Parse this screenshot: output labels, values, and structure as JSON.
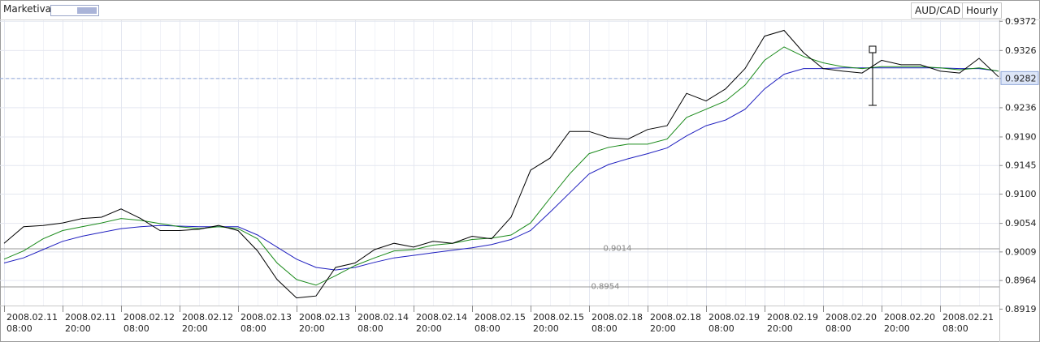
{
  "chart_data": {
    "type": "line",
    "broker": "Marketiva",
    "symbol": "AUD/CAD",
    "timeframe": "Hourly",
    "categories": [
      "2008.02.11 08:00",
      null,
      null,
      "2008.02.11 20:00",
      null,
      null,
      "2008.02.12 08:00",
      null,
      null,
      "2008.02.12 20:00",
      null,
      null,
      "2008.02.13 08:00",
      null,
      null,
      "2008.02.13 20:00",
      null,
      null,
      "2008.02.14 08:00",
      null,
      null,
      "2008.02.14 20:00",
      null,
      null,
      "2008.02.15 08:00",
      null,
      null,
      "2008.02.15 20:00",
      null,
      null,
      "2008.02.18 08:00",
      null,
      null,
      "2008.02.18 20:00",
      null,
      null,
      "2008.02.19 08:00",
      null,
      null,
      "2008.02.19 20:00",
      null,
      null,
      "2008.02.20 08:00",
      null,
      null,
      "2008.02.20 20:00",
      null,
      null,
      "2008.02.21 08:00",
      null,
      null,
      null
    ],
    "series": [
      {
        "color": "#000000",
        "values": [
          0.9022,
          0.9048,
          0.905,
          0.9054,
          0.9061,
          0.9063,
          0.9076,
          0.9061,
          0.9042,
          0.9042,
          0.9044,
          0.905,
          0.9042,
          0.901,
          0.8965,
          0.8936,
          0.8939,
          0.8984,
          0.8991,
          0.9012,
          0.9022,
          0.9016,
          0.9025,
          0.9022,
          0.9033,
          0.9029,
          0.9063,
          0.9137,
          0.9156,
          0.9198,
          0.9198,
          0.9188,
          0.9186,
          0.9201,
          0.9207,
          0.9258,
          0.9246,
          0.9265,
          0.9297,
          0.9348,
          0.9357,
          0.9322,
          0.9297,
          0.9293,
          0.929,
          0.931,
          0.9303,
          0.9303,
          0.9293,
          0.929,
          0.9313,
          0.9284
        ]
      },
      {
        "color": "#1a8a1a",
        "values": [
          0.8997,
          0.901,
          0.9029,
          0.9042,
          0.9048,
          0.9054,
          0.9061,
          0.9058,
          0.9053,
          0.9048,
          0.9045,
          0.9048,
          0.9045,
          0.9029,
          0.8991,
          0.8965,
          0.8956,
          0.8971,
          0.8987,
          0.8999,
          0.901,
          0.9012,
          0.9019,
          0.9022,
          0.9028,
          0.903,
          0.9035,
          0.9054,
          0.9093,
          0.9131,
          0.9163,
          0.9173,
          0.9178,
          0.9178,
          0.9186,
          0.922,
          0.9233,
          0.9246,
          0.9271,
          0.931,
          0.9331,
          0.9316,
          0.9306,
          0.93,
          0.9297,
          0.93,
          0.93,
          0.93,
          0.9298,
          0.9295,
          0.9298,
          0.9293
        ]
      },
      {
        "color": "#1f1fbf",
        "values": [
          0.8991,
          0.8999,
          0.9012,
          0.9025,
          0.9033,
          0.9039,
          0.9045,
          0.9048,
          0.905,
          0.9049,
          0.9048,
          0.9048,
          0.9048,
          0.9035,
          0.9016,
          0.8997,
          0.8984,
          0.898,
          0.8984,
          0.8992,
          0.8999,
          0.9003,
          0.9007,
          0.9011,
          0.9015,
          0.902,
          0.9028,
          0.9042,
          0.9071,
          0.9101,
          0.9131,
          0.9146,
          0.9155,
          0.9163,
          0.9172,
          0.9191,
          0.9207,
          0.9216,
          0.9233,
          0.9265,
          0.9288,
          0.9297,
          0.9297,
          0.9298,
          0.9298,
          0.9298,
          0.9298,
          0.9298,
          0.9298,
          0.9297,
          0.9297,
          0.9293
        ]
      }
    ],
    "levels": [
      0.9014,
      0.8954
    ],
    "last_price": 0.9282,
    "ylim": [
      0.8924,
      0.9373
    ],
    "yticks": [
      0.9372,
      0.9326,
      0.9282,
      0.9236,
      {
        "value": 0.919,
        "label": "0.9190"
      },
      0.9145,
      {
        "value": 0.91,
        "label": "0.9100"
      },
      0.9054,
      0.9009,
      0.8964,
      0.8919
    ],
    "grid": true
  }
}
